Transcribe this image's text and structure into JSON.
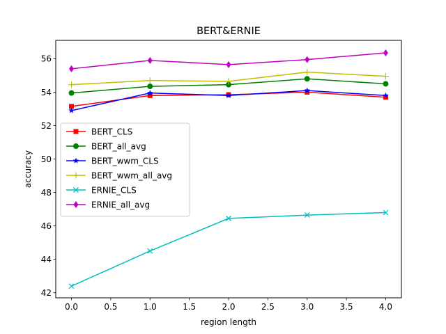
{
  "chart_data": {
    "type": "line",
    "title": "BERT&ERNIE",
    "xlabel": "region length",
    "ylabel": "accuracy",
    "x": [
      0,
      1,
      2,
      3,
      4
    ],
    "xlim": [
      -0.2,
      4.2
    ],
    "ylim": [
      41.7,
      57.1
    ],
    "xticks": [
      0.0,
      0.5,
      1.0,
      1.5,
      2.0,
      2.5,
      3.0,
      3.5,
      4.0
    ],
    "xtick_labels": [
      "0.0",
      "0.5",
      "1.0",
      "1.5",
      "2.0",
      "2.5",
      "3.0",
      "3.5",
      "4.0"
    ],
    "yticks": [
      42,
      44,
      46,
      48,
      50,
      52,
      54,
      56
    ],
    "ytick_labels": [
      "42",
      "44",
      "46",
      "48",
      "50",
      "52",
      "54",
      "56"
    ],
    "grid": false,
    "legend_position": "center-left",
    "series": [
      {
        "name": "BERT_CLS",
        "color": "#ff0000",
        "marker": "square",
        "values": [
          53.15,
          53.8,
          53.85,
          54.0,
          53.7
        ]
      },
      {
        "name": "BERT_all_avg",
        "color": "#008000",
        "marker": "circle",
        "values": [
          53.95,
          54.35,
          54.45,
          54.8,
          54.5
        ]
      },
      {
        "name": "BERT_wwm_CLS",
        "color": "#0000ff",
        "marker": "star",
        "values": [
          52.9,
          53.95,
          53.8,
          54.1,
          53.8
        ]
      },
      {
        "name": "BERT_wwm_all_avg",
        "color": "#bfbf00",
        "marker": "plus",
        "values": [
          54.45,
          54.7,
          54.65,
          55.2,
          54.95
        ]
      },
      {
        "name": "ERNIE_CLS",
        "color": "#00bfbf",
        "marker": "x",
        "values": [
          42.4,
          44.5,
          46.45,
          46.65,
          46.8
        ]
      },
      {
        "name": "ERNIE_all_avg",
        "color": "#bf00bf",
        "marker": "diamond",
        "values": [
          55.4,
          55.9,
          55.65,
          55.95,
          56.35
        ]
      }
    ]
  }
}
